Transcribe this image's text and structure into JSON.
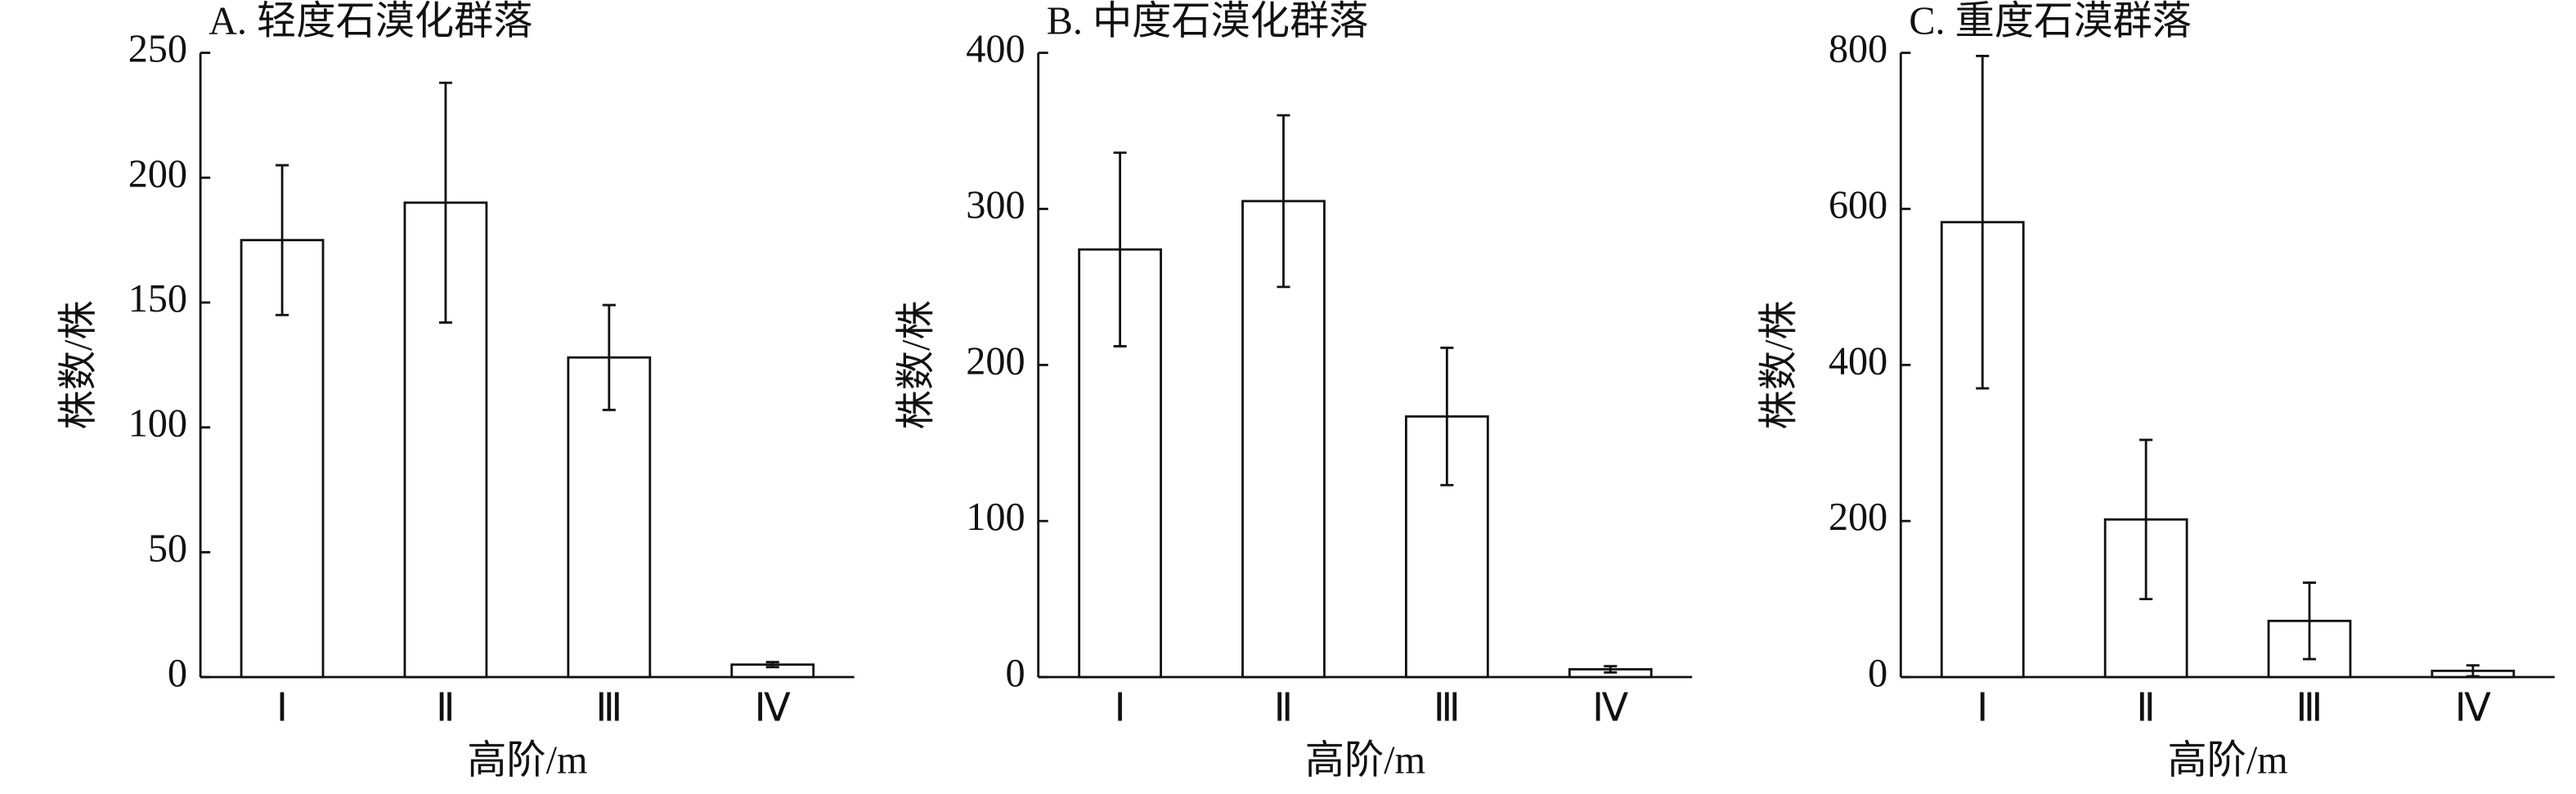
{
  "chart_data": [
    {
      "type": "bar",
      "title": "A. 轻度石漠化群落",
      "x_label": "高阶/m",
      "y_label": "株数/株",
      "categories": [
        "Ⅰ",
        "Ⅱ",
        "Ⅲ",
        "Ⅳ"
      ],
      "values": [
        175,
        190,
        128,
        5
      ],
      "errors": [
        30,
        48,
        21,
        1
      ],
      "color": "#ffffff",
      "ylim": [
        0,
        250
      ],
      "yticks": [
        0,
        50,
        100,
        150,
        200,
        250
      ]
    },
    {
      "type": "bar",
      "title": "B. 中度石漠化群落",
      "x_label": "高阶/m",
      "y_label": "株数/株",
      "categories": [
        "Ⅰ",
        "Ⅱ",
        "Ⅲ",
        "Ⅳ"
      ],
      "values": [
        274,
        305,
        167,
        5
      ],
      "errors": [
        62,
        55,
        44,
        2
      ],
      "color": "#ffffff",
      "ylim": [
        0,
        400
      ],
      "yticks": [
        0,
        100,
        200,
        300,
        400
      ]
    },
    {
      "type": "bar",
      "title": "C. 重度石漠群落",
      "x_label": "高阶/m",
      "y_label": "株数/株",
      "categories": [
        "Ⅰ",
        "Ⅱ",
        "Ⅲ",
        "Ⅳ"
      ],
      "values": [
        583,
        202,
        72,
        8
      ],
      "errors": [
        213,
        102,
        49,
        7
      ],
      "color": "#ffffff",
      "ylim": [
        0,
        800
      ],
      "yticks": [
        0,
        200,
        400,
        600,
        800
      ]
    }
  ]
}
